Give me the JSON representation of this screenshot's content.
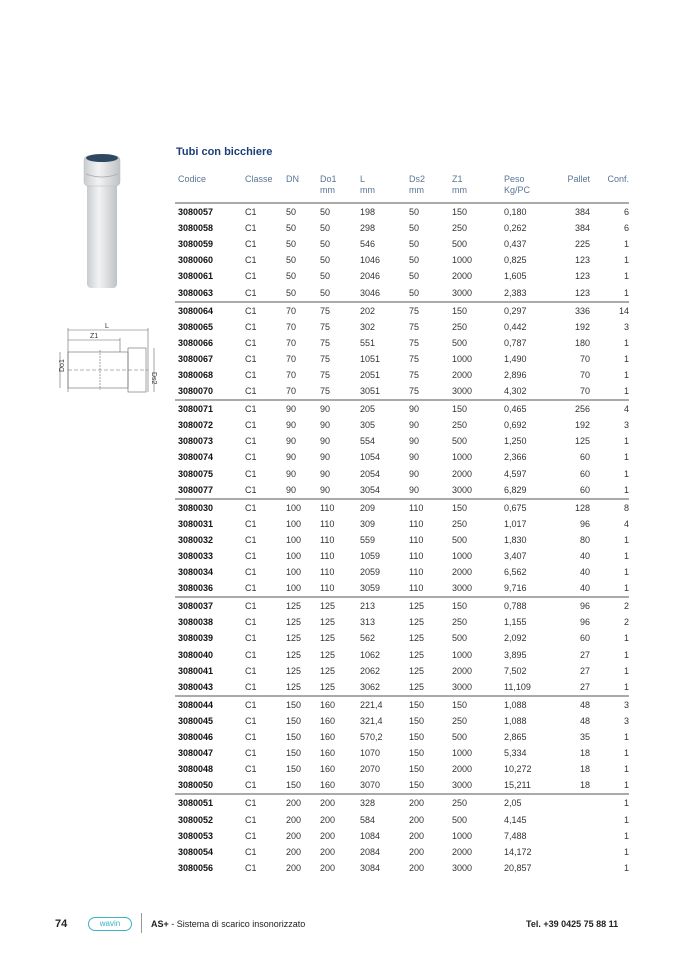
{
  "title": "Tubi con bicchiere",
  "headers": {
    "codice": "Codice",
    "classe": "Classe",
    "dn": "DN",
    "do1": "Do1",
    "do1_unit": "mm",
    "l": "L",
    "l_unit": "mm",
    "ds2": "Ds2",
    "ds2_unit": "mm",
    "z1": "Z1",
    "z1_unit": "mm",
    "peso": "Peso",
    "peso_unit": "Kg/PC",
    "pallet": "Pallet",
    "conf": "Conf."
  },
  "groups": [
    [
      [
        "3080057",
        "C1",
        "50",
        "50",
        "198",
        "50",
        "150",
        "0,180",
        "384",
        "6"
      ],
      [
        "3080058",
        "C1",
        "50",
        "50",
        "298",
        "50",
        "250",
        "0,262",
        "384",
        "6"
      ],
      [
        "3080059",
        "C1",
        "50",
        "50",
        "546",
        "50",
        "500",
        "0,437",
        "225",
        "1"
      ],
      [
        "3080060",
        "C1",
        "50",
        "50",
        "1046",
        "50",
        "1000",
        "0,825",
        "123",
        "1"
      ],
      [
        "3080061",
        "C1",
        "50",
        "50",
        "2046",
        "50",
        "2000",
        "1,605",
        "123",
        "1"
      ],
      [
        "3080063",
        "C1",
        "50",
        "50",
        "3046",
        "50",
        "3000",
        "2,383",
        "123",
        "1"
      ]
    ],
    [
      [
        "3080064",
        "C1",
        "70",
        "75",
        "202",
        "75",
        "150",
        "0,297",
        "336",
        "14"
      ],
      [
        "3080065",
        "C1",
        "70",
        "75",
        "302",
        "75",
        "250",
        "0,442",
        "192",
        "3"
      ],
      [
        "3080066",
        "C1",
        "70",
        "75",
        "551",
        "75",
        "500",
        "0,787",
        "180",
        "1"
      ],
      [
        "3080067",
        "C1",
        "70",
        "75",
        "1051",
        "75",
        "1000",
        "1,490",
        "70",
        "1"
      ],
      [
        "3080068",
        "C1",
        "70",
        "75",
        "2051",
        "75",
        "2000",
        "2,896",
        "70",
        "1"
      ],
      [
        "3080070",
        "C1",
        "70",
        "75",
        "3051",
        "75",
        "3000",
        "4,302",
        "70",
        "1"
      ]
    ],
    [
      [
        "3080071",
        "C1",
        "90",
        "90",
        "205",
        "90",
        "150",
        "0,465",
        "256",
        "4"
      ],
      [
        "3080072",
        "C1",
        "90",
        "90",
        "305",
        "90",
        "250",
        "0,692",
        "192",
        "3"
      ],
      [
        "3080073",
        "C1",
        "90",
        "90",
        "554",
        "90",
        "500",
        "1,250",
        "125",
        "1"
      ],
      [
        "3080074",
        "C1",
        "90",
        "90",
        "1054",
        "90",
        "1000",
        "2,366",
        "60",
        "1"
      ],
      [
        "3080075",
        "C1",
        "90",
        "90",
        "2054",
        "90",
        "2000",
        "4,597",
        "60",
        "1"
      ],
      [
        "3080077",
        "C1",
        "90",
        "90",
        "3054",
        "90",
        "3000",
        "6,829",
        "60",
        "1"
      ]
    ],
    [
      [
        "3080030",
        "C1",
        "100",
        "110",
        "209",
        "110",
        "150",
        "0,675",
        "128",
        "8"
      ],
      [
        "3080031",
        "C1",
        "100",
        "110",
        "309",
        "110",
        "250",
        "1,017",
        "96",
        "4"
      ],
      [
        "3080032",
        "C1",
        "100",
        "110",
        "559",
        "110",
        "500",
        "1,830",
        "80",
        "1"
      ],
      [
        "3080033",
        "C1",
        "100",
        "110",
        "1059",
        "110",
        "1000",
        "3,407",
        "40",
        "1"
      ],
      [
        "3080034",
        "C1",
        "100",
        "110",
        "2059",
        "110",
        "2000",
        "6,562",
        "40",
        "1"
      ],
      [
        "3080036",
        "C1",
        "100",
        "110",
        "3059",
        "110",
        "3000",
        "9,716",
        "40",
        "1"
      ]
    ],
    [
      [
        "3080037",
        "C1",
        "125",
        "125",
        "213",
        "125",
        "150",
        "0,788",
        "96",
        "2"
      ],
      [
        "3080038",
        "C1",
        "125",
        "125",
        "313",
        "125",
        "250",
        "1,155",
        "96",
        "2"
      ],
      [
        "3080039",
        "C1",
        "125",
        "125",
        "562",
        "125",
        "500",
        "2,092",
        "60",
        "1"
      ],
      [
        "3080040",
        "C1",
        "125",
        "125",
        "1062",
        "125",
        "1000",
        "3,895",
        "27",
        "1"
      ],
      [
        "3080041",
        "C1",
        "125",
        "125",
        "2062",
        "125",
        "2000",
        "7,502",
        "27",
        "1"
      ],
      [
        "3080043",
        "C1",
        "125",
        "125",
        "3062",
        "125",
        "3000",
        "11,109",
        "27",
        "1"
      ]
    ],
    [
      [
        "3080044",
        "C1",
        "150",
        "160",
        "221,4",
        "150",
        "150",
        "1,088",
        "48",
        "3"
      ],
      [
        "3080045",
        "C1",
        "150",
        "160",
        "321,4",
        "150",
        "250",
        "1,088",
        "48",
        "3"
      ],
      [
        "3080046",
        "C1",
        "150",
        "160",
        "570,2",
        "150",
        "500",
        "2,865",
        "35",
        "1"
      ],
      [
        "3080047",
        "C1",
        "150",
        "160",
        "1070",
        "150",
        "1000",
        "5,334",
        "18",
        "1"
      ],
      [
        "3080048",
        "C1",
        "150",
        "160",
        "2070",
        "150",
        "2000",
        "10,272",
        "18",
        "1"
      ],
      [
        "3080050",
        "C1",
        "150",
        "160",
        "3070",
        "150",
        "3000",
        "15,211",
        "18",
        "1"
      ]
    ],
    [
      [
        "3080051",
        "C1",
        "200",
        "200",
        "328",
        "200",
        "250",
        "2,05",
        "",
        "1"
      ],
      [
        "3080052",
        "C1",
        "200",
        "200",
        "584",
        "200",
        "500",
        "4,145",
        "",
        "1"
      ],
      [
        "3080053",
        "C1",
        "200",
        "200",
        "1084",
        "200",
        "1000",
        "7,488",
        "",
        "1"
      ],
      [
        "3080054",
        "C1",
        "200",
        "200",
        "2084",
        "200",
        "2000",
        "14,172",
        "",
        "1"
      ],
      [
        "3080056",
        "C1",
        "200",
        "200",
        "3084",
        "200",
        "3000",
        "20,857",
        "",
        "1"
      ]
    ]
  ],
  "drawing": {
    "l": "L",
    "z1": "Z1",
    "do1": "Do1",
    "ds2": "Ds2"
  },
  "footer": {
    "page_number": "74",
    "logo": "wavin",
    "product": "AS+",
    "subtitle": " - Sistema di scarico insonorizzato",
    "phone": "Tel. +39 0425 75 88 11"
  },
  "colors": {
    "title": "#1d3f78",
    "header": "#5a7595",
    "logo": "#3ab3c9"
  }
}
